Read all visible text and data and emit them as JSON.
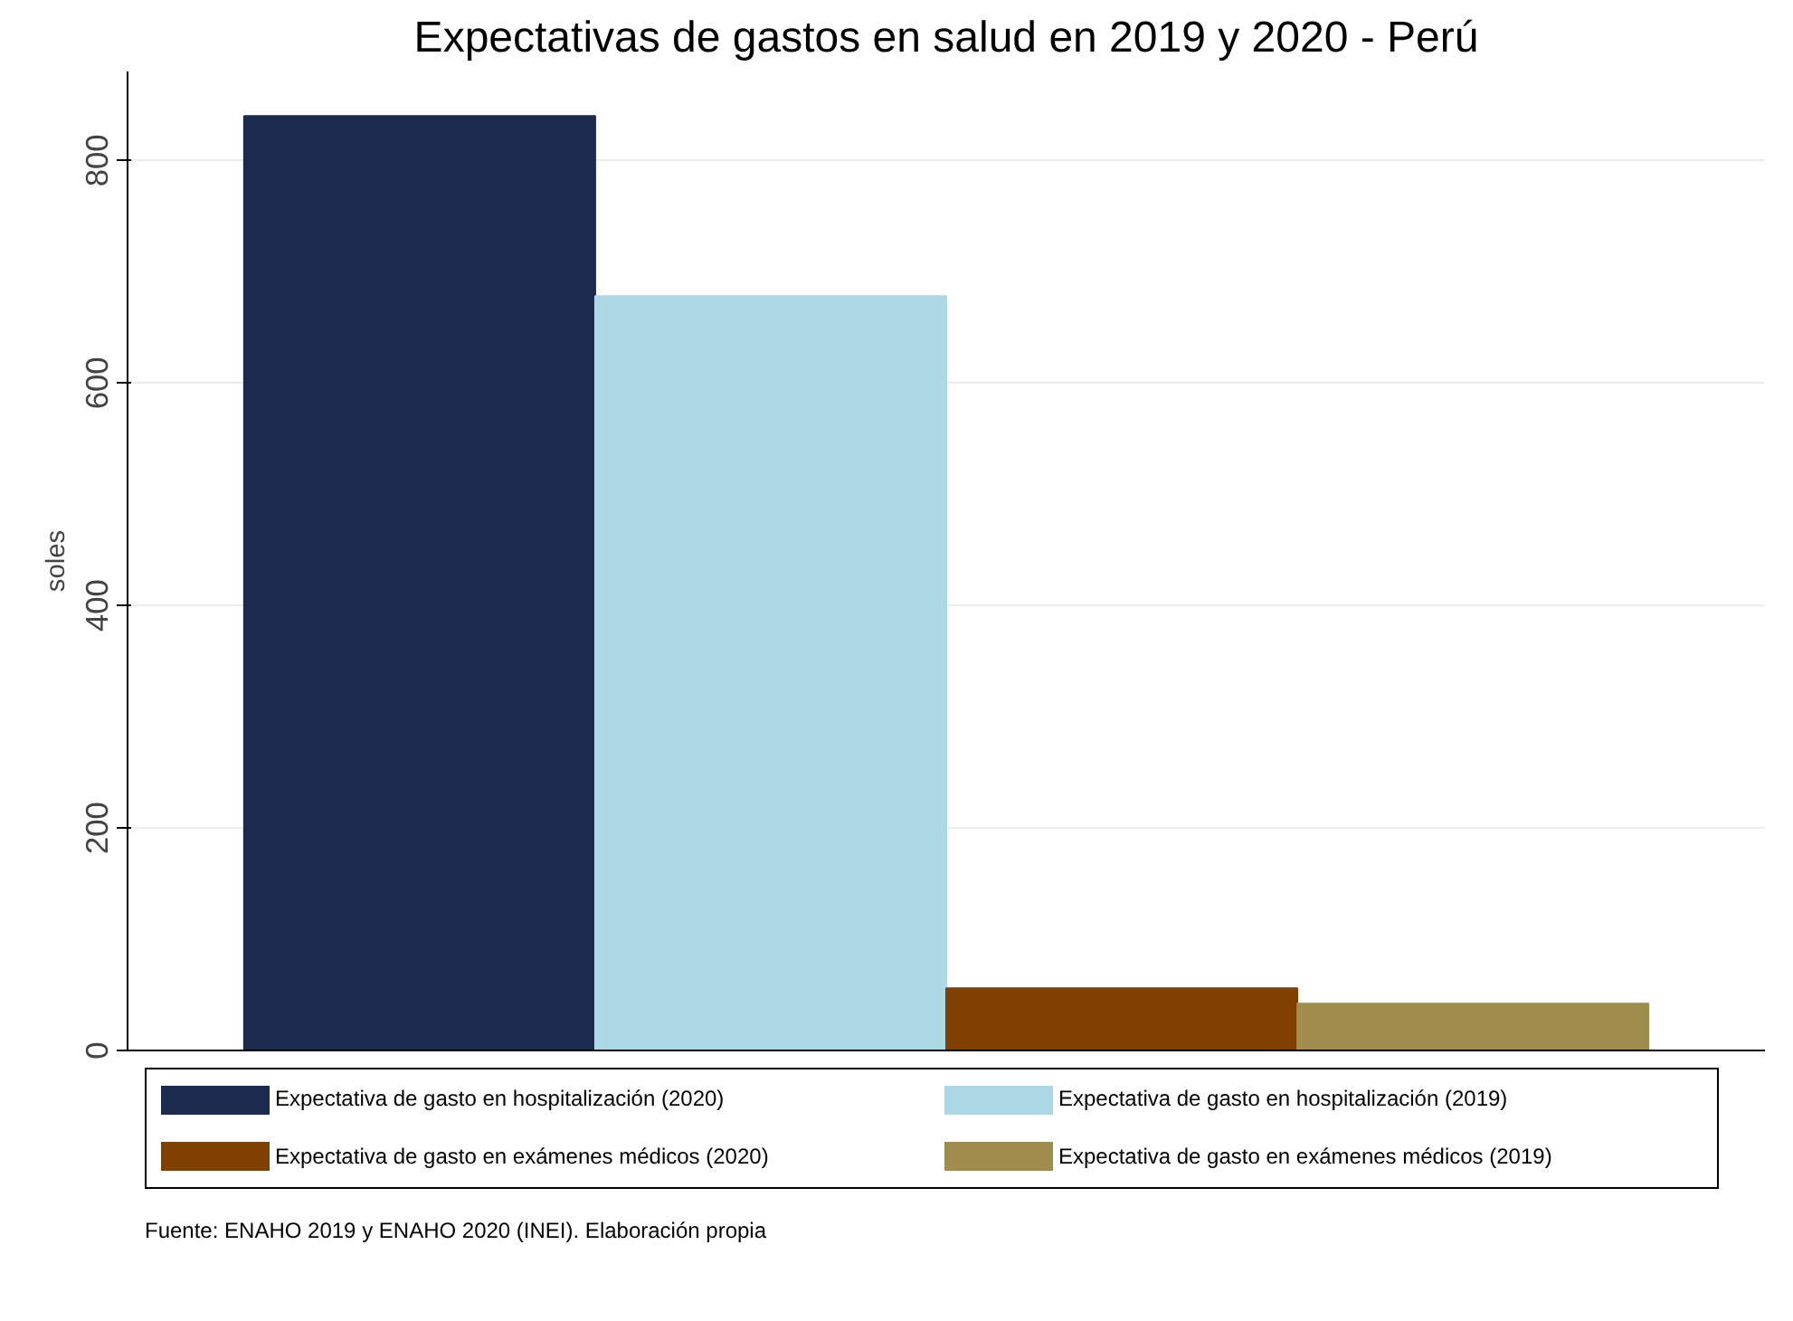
{
  "chart_data": {
    "type": "bar",
    "title": "Expectativas de gastos en salud en 2019 y 2020 - Perú",
    "ylabel": "soles",
    "categories": [
      null
    ],
    "series": [
      {
        "name": "Expectativa de gasto en hospitalización (2020)",
        "color": "#1a2b4f",
        "values": [
          840
        ]
      },
      {
        "name": "Expectativa de gasto en hospitalización (2019)",
        "color": "#add8e6",
        "values": [
          678
        ]
      },
      {
        "name": "Expectativa de gasto en exámenes médicos (2020)",
        "color": "#7f4000",
        "values": [
          56
        ]
      },
      {
        "name": "Expectativa de gasto en exámenes médicos (2019)",
        "color": "#a08c4c",
        "values": [
          42
        ]
      }
    ],
    "ylim": [
      0,
      880
    ],
    "yticks": [
      0,
      200,
      400,
      600,
      800
    ],
    "grid": "y",
    "legend": "bottom",
    "annotations": [
      "Fuente: ENAHO 2019 y ENAHO 2020 (INEI). Elaboración propia"
    ]
  }
}
